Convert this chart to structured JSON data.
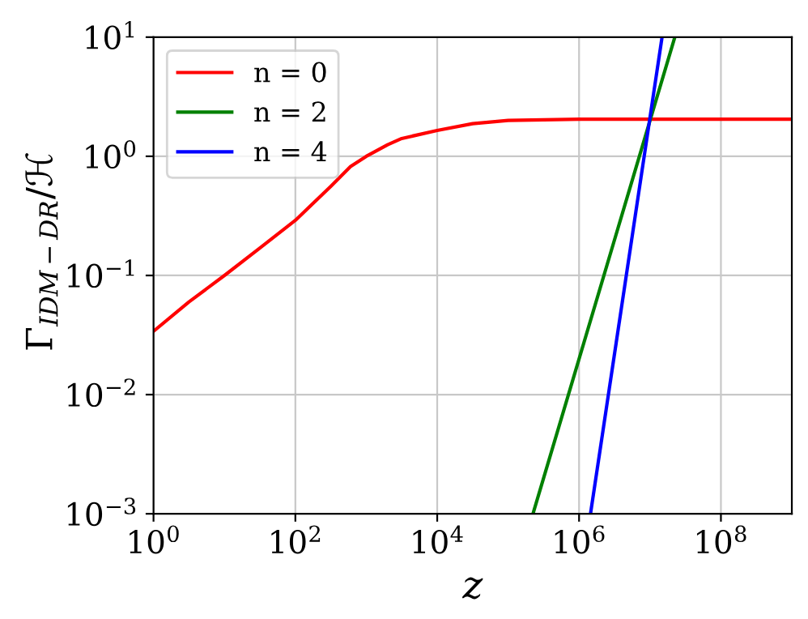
{
  "chart_data": {
    "type": "line",
    "xlabel": "z",
    "ylabel": "Γ$_{IDM−DR}$/ℋ",
    "log": "xy",
    "xlim": [
      1,
      1000000000
    ],
    "ylim": [
      0.001,
      10
    ],
    "xticks": [
      {
        "value": 1,
        "label": "10$^{0}$"
      },
      {
        "value": 100,
        "label": "10$^{2}$"
      },
      {
        "value": 10000,
        "label": "10$^{4}$"
      },
      {
        "value": 1000000,
        "label": "10$^{6}$"
      },
      {
        "value": 100000000,
        "label": "10$^{8}$"
      }
    ],
    "yticks": [
      {
        "value": 0.001,
        "label": "10$^{−3}$"
      },
      {
        "value": 0.01,
        "label": "10$^{−2}$"
      },
      {
        "value": 0.1,
        "label": "10$^{−1}$"
      },
      {
        "value": 1,
        "label": "10$^{0}$"
      },
      {
        "value": 10,
        "label": "10$^{1}$"
      }
    ],
    "grid": true,
    "legend": "top left",
    "line_style": "solid",
    "marker": "none",
    "series": [
      {
        "name": "n = 0",
        "color": "#ff0000",
        "x": [
          1,
          3.16,
          10,
          31.6,
          100,
          316,
          600,
          1000,
          2000,
          3160,
          10000,
          31600,
          100000,
          1000000,
          10000000,
          100000000,
          1000000000
        ],
        "values": [
          0.034,
          0.06,
          0.1,
          0.17,
          0.29,
          0.56,
          0.82,
          1.0,
          1.25,
          1.41,
          1.65,
          1.88,
          2.0,
          2.05,
          2.05,
          2.05,
          2.05
        ]
      },
      {
        "name": "n = 2",
        "color": "#008000",
        "x": [
          224000,
          22400000
        ],
        "values": [
          0.001,
          10
        ]
      },
      {
        "name": "n = 4",
        "color": "#0000ff",
        "x": [
          1450000,
          14800000
        ],
        "values": [
          0.001,
          10
        ]
      }
    ]
  }
}
